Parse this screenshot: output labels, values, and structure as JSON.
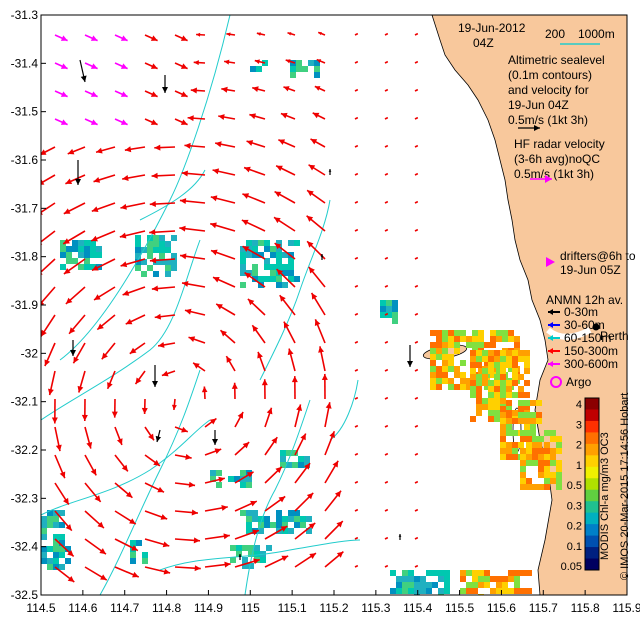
{
  "map": {
    "lon_range": [
      114.5,
      115.9
    ],
    "lat_range": [
      -32.5,
      -31.3
    ],
    "x_ticks": [
      "114.5",
      "114.6",
      "114.7",
      "114.8",
      "114.9",
      "115",
      "115.1",
      "115.2",
      "115.3",
      "115.4",
      "115.5",
      "115.6",
      "115.7",
      "115.8",
      "115.9"
    ],
    "y_ticks": [
      "-31.3",
      "-31.4",
      "-31.5",
      "-31.6",
      "-31.7",
      "-31.8",
      "-31.9",
      "-32",
      "-32.1",
      "-32.2",
      "-32.3",
      "-32.4",
      "-32.5"
    ],
    "land_color": "#f8c89c",
    "radar_arrow_color": "#ee0000",
    "contour_color": "#22cccc",
    "drifter_color": "#ff00ff"
  },
  "legend": {
    "date": "19-Jun-2012",
    "time": "04Z",
    "scale_label_1": "200",
    "scale_label_2": "1000m",
    "altimetry_lines": [
      "Altimetric sealevel",
      "(0.1m contours)",
      "and velocity for",
      "19-Jun 04Z",
      "0.5m/s (1kt 3h)"
    ],
    "radar_lines": [
      "HF radar velocity",
      "(3-6h avg)noQC",
      "0.5m/s (1kt 3h)"
    ],
    "drifter_lines": [
      "drifters@6h to",
      "19-Jun 05Z"
    ],
    "anmn_title": "ANMN 12h av.",
    "anmn_items": [
      "0-30m",
      "30-60m",
      "60-150m",
      "150-300m",
      "300-600m"
    ],
    "anmn_colors": [
      "#000000",
      "#0000ff",
      "#00cccc",
      "#ff0000",
      "#ff00ff"
    ],
    "place_label": "Perth",
    "argo_label": "Argo"
  },
  "colorbar": {
    "ticks": [
      "4",
      "3",
      "2",
      "1",
      "0.5",
      "0.3",
      "0.2",
      "0.1",
      "0.05"
    ],
    "label": "MODIS Chl-a mg/m3 OC3",
    "credit": "© IMOS 20-Mar-2015 17:14:56 Hobart"
  }
}
